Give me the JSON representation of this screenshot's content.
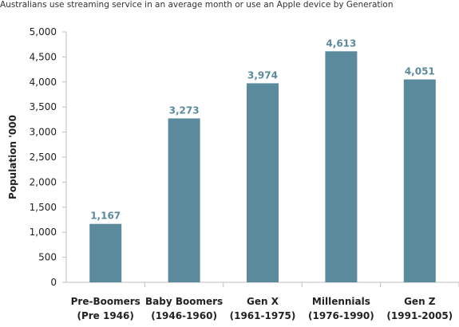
{
  "chart_data": {
    "type": "bar",
    "title": "Australians use streaming service in an average month or use an Apple device by Generation",
    "xlabel": "",
    "ylabel": "Population '000",
    "categories": [
      [
        "Pre-Boomers",
        "(Pre 1946)"
      ],
      [
        "Baby Boomers",
        "(1946-1960)"
      ],
      [
        "Gen X",
        "(1961-1975)"
      ],
      [
        "Millennials",
        "(1976-1990)"
      ],
      [
        "Gen Z",
        "(1991-2005)"
      ]
    ],
    "values": [
      1167,
      3273,
      3974,
      4613,
      4051
    ],
    "value_labels": [
      "1,167",
      "3,273",
      "3,974",
      "4,613",
      "4,051"
    ],
    "ylim": [
      0,
      5000
    ],
    "yticks": [
      0,
      500,
      1000,
      1500,
      2000,
      2500,
      3000,
      3500,
      4000,
      4500,
      5000
    ],
    "ytick_labels": [
      "0",
      "500",
      "1,000",
      "1,500",
      "2,000",
      "2,500",
      "3,000",
      "3,500",
      "4,000",
      "4,500",
      "5,000"
    ],
    "grid": false,
    "legend": "none",
    "colors": {
      "bar": "#5b8a9c",
      "data_label": "#5b8a9c",
      "axis": "#bfbfbf",
      "text": "#222222"
    }
  }
}
